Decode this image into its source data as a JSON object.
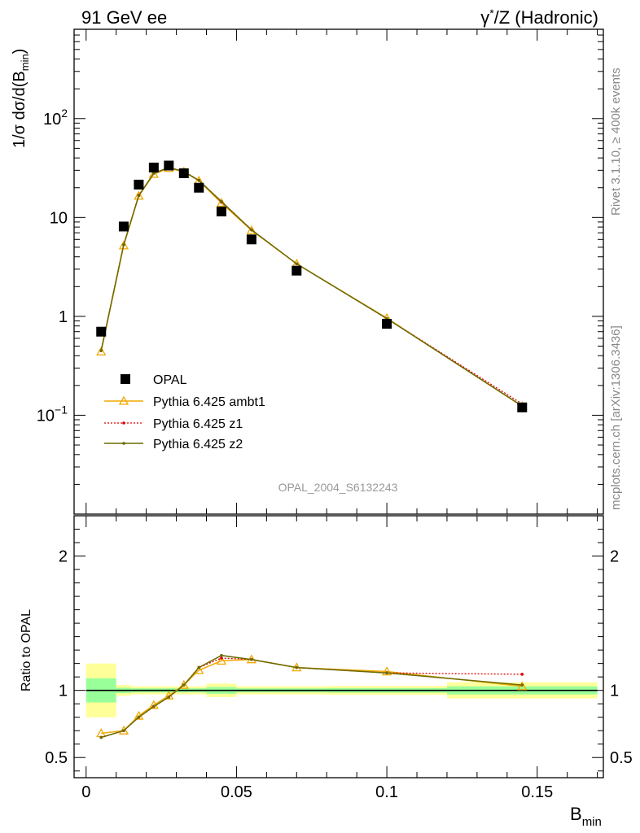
{
  "header": {
    "left": "91 GeV ee",
    "right_prefix": "γ",
    "right_sup": "*",
    "right_suffix": "/Z (Hadronic)"
  },
  "side_labels": {
    "rivet": "Rivet 3.1.10, ≥ 400k events",
    "mcplots": "mcplots.cern.ch [arXiv:1306.3436]"
  },
  "watermark": "OPAL_2004_S6132243",
  "ylabel_main": "1/σ dσ/d(B",
  "ylabel_main_sub": "min",
  "ylabel_main_close": ")",
  "ylabel_ratio": "Ratio to OPAL",
  "xlabel": "B",
  "xlabel_sub": "min",
  "colors": {
    "data": "#000000",
    "ambt1": "#f0a800",
    "z1": "#e00000",
    "z2": "#6b6b00",
    "band_inner": "#99ff99",
    "band_outer": "#ffff99"
  },
  "chart_data": [
    {
      "type": "line",
      "yscale": "log",
      "xlim": [
        -0.004,
        0.172
      ],
      "ylim": [
        0.01,
        800
      ],
      "yticks": [
        {
          "value": 0.1,
          "base": "10",
          "exp": "−1"
        },
        {
          "value": 1,
          "base": "1",
          "exp": ""
        },
        {
          "value": 10,
          "base": "10",
          "exp": ""
        },
        {
          "value": 100,
          "base": "10",
          "exp": "2"
        }
      ],
      "x": [
        0.005,
        0.0125,
        0.0175,
        0.0225,
        0.0275,
        0.0325,
        0.0375,
        0.045,
        0.055,
        0.07,
        0.1,
        0.145
      ],
      "series": [
        {
          "name": "OPAL",
          "style": "marker-square",
          "values": [
            0.7,
            8.1,
            21.5,
            32.0,
            33.5,
            28.0,
            20.0,
            11.5,
            6.0,
            2.9,
            0.84,
            0.12
          ]
        },
        {
          "name": "Pythia 6.425 ambt1",
          "style": "line-triangle",
          "values": [
            0.44,
            5.2,
            16.5,
            27.5,
            31.5,
            29.0,
            23.5,
            14.0,
            7.4,
            3.4,
            0.96,
            0.123
          ]
        },
        {
          "name": "Pythia 6.425 z1",
          "style": "dotted",
          "values": [
            0.45,
            5.3,
            16.8,
            28.0,
            32.0,
            29.3,
            23.8,
            14.3,
            7.5,
            3.4,
            0.95,
            0.13
          ]
        },
        {
          "name": "Pythia 6.425 z2",
          "style": "line-dot",
          "values": [
            0.45,
            5.3,
            16.6,
            28.0,
            32.0,
            29.2,
            23.7,
            14.5,
            7.5,
            3.4,
            0.95,
            0.124
          ]
        }
      ]
    },
    {
      "type": "line",
      "xlim": [
        -0.004,
        0.172
      ],
      "ylim": [
        0.35,
        2.3
      ],
      "yticks": [
        0.5,
        1,
        2
      ],
      "xticks": [
        {
          "value": 0,
          "label": "0"
        },
        {
          "value": 0.05,
          "label": "0.05"
        },
        {
          "value": 0.1,
          "label": "0.1"
        },
        {
          "value": 0.15,
          "label": "0.15"
        }
      ],
      "x": [
        0.005,
        0.0125,
        0.0175,
        0.0225,
        0.0275,
        0.0325,
        0.0375,
        0.045,
        0.055,
        0.07,
        0.1,
        0.145
      ],
      "bands": [
        {
          "x0": 0.0,
          "x1": 0.01,
          "inner": [
            0.91,
            1.09
          ],
          "outer": [
            0.8,
            1.2
          ]
        },
        {
          "x0": 0.01,
          "x1": 0.015,
          "inner": [
            0.98,
            1.02
          ],
          "outer": [
            0.96,
            1.04
          ]
        },
        {
          "x0": 0.015,
          "x1": 0.02,
          "inner": [
            0.985,
            1.015
          ],
          "outer": [
            0.97,
            1.03
          ]
        },
        {
          "x0": 0.02,
          "x1": 0.025,
          "inner": [
            0.985,
            1.015
          ],
          "outer": [
            0.97,
            1.03
          ]
        },
        {
          "x0": 0.025,
          "x1": 0.03,
          "inner": [
            0.985,
            1.015
          ],
          "outer": [
            0.97,
            1.03
          ]
        },
        {
          "x0": 0.03,
          "x1": 0.035,
          "inner": [
            0.985,
            1.015
          ],
          "outer": [
            0.97,
            1.03
          ]
        },
        {
          "x0": 0.035,
          "x1": 0.04,
          "inner": [
            0.985,
            1.015
          ],
          "outer": [
            0.97,
            1.03
          ]
        },
        {
          "x0": 0.04,
          "x1": 0.05,
          "inner": [
            0.975,
            1.025
          ],
          "outer": [
            0.95,
            1.05
          ]
        },
        {
          "x0": 0.05,
          "x1": 0.06,
          "inner": [
            0.985,
            1.015
          ],
          "outer": [
            0.97,
            1.03
          ]
        },
        {
          "x0": 0.06,
          "x1": 0.08,
          "inner": [
            0.985,
            1.015
          ],
          "outer": [
            0.97,
            1.03
          ]
        },
        {
          "x0": 0.08,
          "x1": 0.12,
          "inner": [
            0.983,
            1.017
          ],
          "outer": [
            0.967,
            1.033
          ]
        },
        {
          "x0": 0.12,
          "x1": 0.17,
          "inner": [
            0.97,
            1.03
          ],
          "outer": [
            0.94,
            1.06
          ]
        }
      ],
      "series": [
        {
          "name": "Pythia 6.425 ambt1",
          "style": "line-triangle",
          "values": [
            0.68,
            0.7,
            0.81,
            0.89,
            0.96,
            1.04,
            1.15,
            1.22,
            1.23,
            1.17,
            1.14,
            1.03
          ]
        },
        {
          "name": "Pythia 6.425 z1",
          "style": "dotted",
          "values": [
            0.65,
            0.7,
            0.8,
            0.88,
            0.95,
            1.04,
            1.17,
            1.24,
            1.23,
            1.17,
            1.13,
            1.12
          ]
        },
        {
          "name": "Pythia 6.425 z2",
          "style": "line-dot",
          "values": [
            0.65,
            0.7,
            0.8,
            0.88,
            0.95,
            1.04,
            1.17,
            1.26,
            1.23,
            1.17,
            1.13,
            1.04
          ]
        }
      ]
    }
  ]
}
